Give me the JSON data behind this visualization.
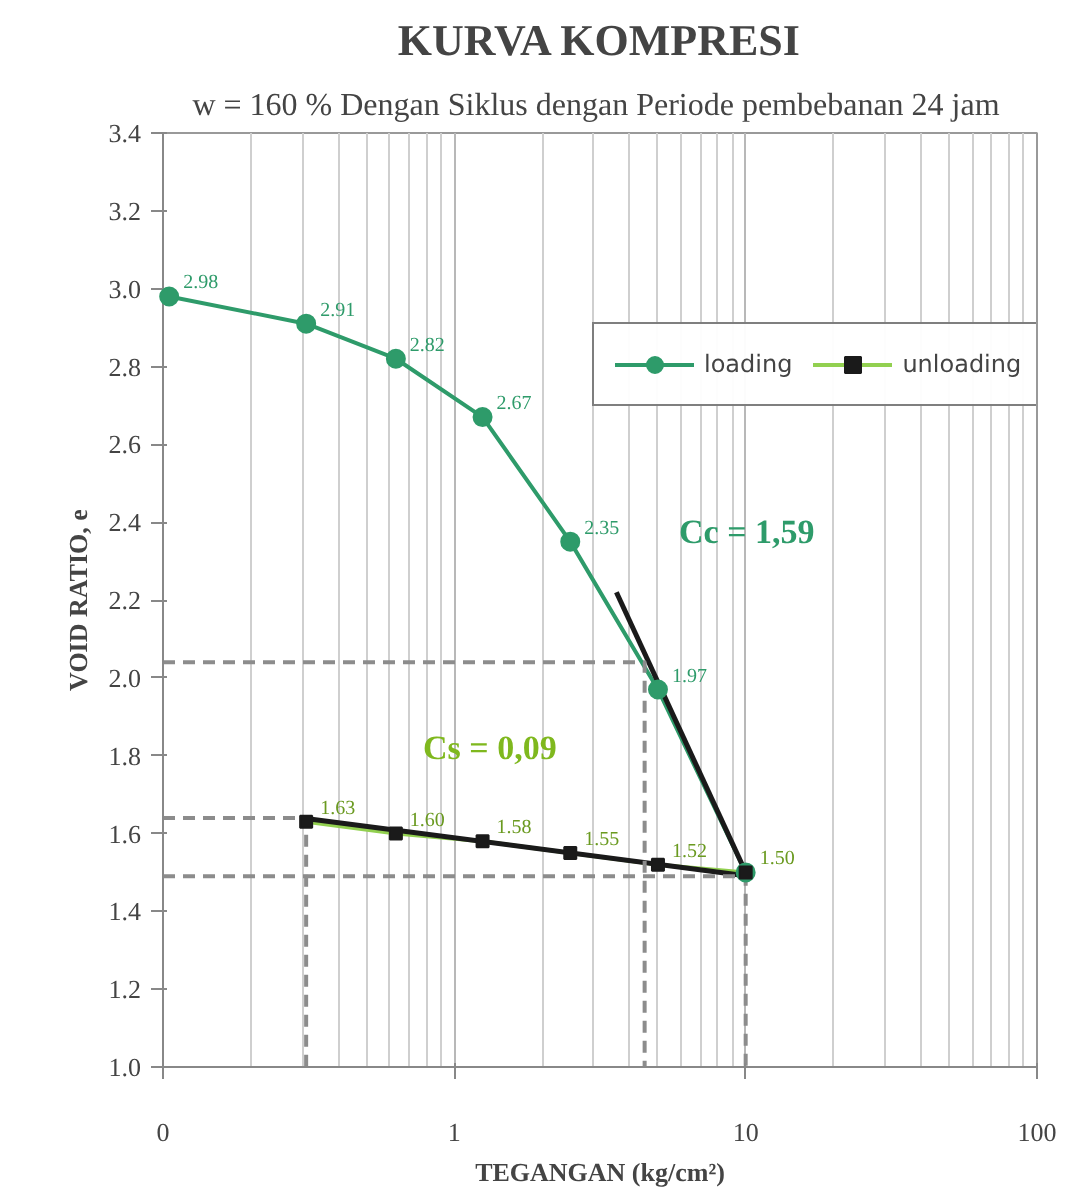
{
  "chart_data": {
    "type": "line",
    "title": "KURVA KOMPRESI",
    "subtitle": "w  = 160 % Dengan Siklus dengan Periode pembebanan 24 jam",
    "xlabel": "TEGANGAN (kg/cm²)",
    "ylabel": "VOID RATIO, e",
    "log": "x",
    "xlim": [
      0.1,
      100
    ],
    "xticks": [
      {
        "value": 0.1,
        "label": "0"
      },
      1,
      10,
      100
    ],
    "ylim": [
      1.0,
      3.4
    ],
    "yticks": [
      {
        "value": 1.0,
        "label": "1.0"
      },
      1.2,
      1.4,
      1.6,
      1.8,
      {
        "value": 2.0,
        "label": "2.0"
      },
      2.2,
      2.4,
      2.6,
      2.8,
      {
        "value": 3.0,
        "label": "3.0"
      },
      3.2,
      3.4
    ],
    "grid": "x",
    "legend": "top right",
    "series": [
      {
        "name": "loading",
        "color": "#2e9b6a",
        "marker": "circle",
        "x": [
          0.105,
          0.31,
          0.63,
          1.25,
          2.5,
          5,
          10
        ],
        "values": [
          2.98,
          2.91,
          2.82,
          2.67,
          2.35,
          1.97,
          1.5
        ],
        "value_labels": [
          "2.98",
          "2.91",
          "2.82",
          "2.67",
          "2.35",
          "1.97",
          null
        ]
      },
      {
        "name": "unloading",
        "color": "#92d050",
        "marker": "square",
        "x": [
          10,
          5,
          2.5,
          1.25,
          0.63,
          0.31
        ],
        "values": [
          1.5,
          1.52,
          1.55,
          1.58,
          1.6,
          1.63
        ],
        "value_labels": [
          "1.50",
          "1.52",
          "1.55",
          "1.58",
          "1.60",
          "1.63"
        ]
      },
      {
        "color": "#1a1a1a",
        "marker": "none",
        "x": [
          3.6,
          10.3
        ],
        "values": [
          2.22,
          1.48
        ]
      },
      {
        "color": "#1a1a1a",
        "marker": "none",
        "x": [
          0.3,
          10.3
        ],
        "values": [
          1.64,
          1.49
        ]
      },
      {
        "color": "#8c8c8c",
        "marker": "none",
        "line_style": "dashed",
        "x": [
          0.1,
          4.5,
          4.5
        ],
        "values": [
          2.04,
          2.04,
          1.0
        ]
      },
      {
        "color": "#8c8c8c",
        "marker": "none",
        "line_style": "dashed",
        "x": [
          0.1,
          0.31,
          0.31
        ],
        "values": [
          1.64,
          1.64,
          1.0
        ]
      },
      {
        "color": "#8c8c8c",
        "marker": "none",
        "line_style": "dashed",
        "x": [
          0.1,
          10,
          10
        ],
        "values": [
          1.49,
          1.49,
          1.0
        ]
      }
    ],
    "annotations": [
      "Cc = 1,59",
      "Cs = 0,09"
    ]
  }
}
